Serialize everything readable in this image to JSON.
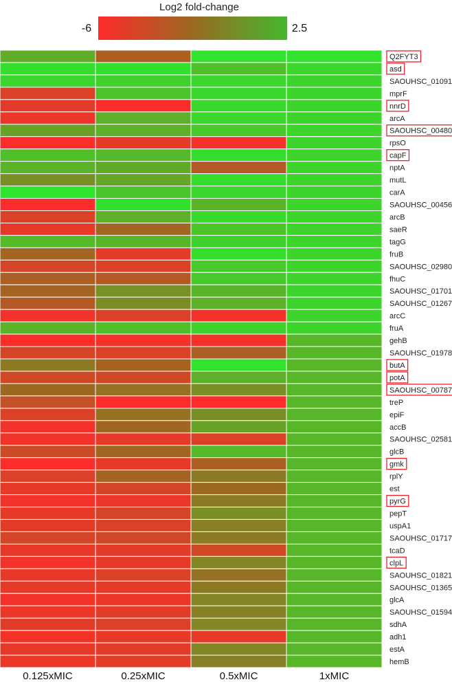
{
  "chart_data": {
    "type": "heatmap",
    "colorbar": {
      "title": "Log2 fold-change",
      "min_label": "-6",
      "max_label": "2.5",
      "vmin": -6,
      "vmax": 2.5,
      "low_color": "#ff2a2a",
      "high_color": "#2ee62e"
    },
    "columns": [
      "0.125xMIC",
      "0.25xMIC",
      "0.5xMIC",
      "1xMIC"
    ],
    "rows": [
      "Q2FYT3",
      "asd",
      "SAOUHSC_01091",
      "mprF",
      "nnrD",
      "arcA",
      "SAOUHSC_00480",
      "rpsO",
      "capF",
      "nptA",
      "mutL",
      "carA",
      "SAOUHSC_00456",
      "arcB",
      "saeR",
      "tagG",
      "fruB",
      "SAOUHSC_02980",
      "fhuC",
      "SAOUHSC_01701",
      "SAOUHSC_01267",
      "arcC",
      "fruA",
      "gehB",
      "SAOUHSC_01978",
      "butA",
      "potA",
      "SAOUHSC_00787",
      "treP",
      "epiF",
      "accB",
      "SAOUHSC_02581",
      "glcB",
      "gmk",
      "rplY",
      "est",
      "pyrG",
      "pepT",
      "uspA1",
      "SAOUHSC_01717",
      "tcaD",
      "clpL",
      "SAOUHSC_01821",
      "SAOUHSC_01365",
      "glcA",
      "SAOUHSC_01594",
      "sdhA",
      "adh1",
      "estA",
      "hemB"
    ],
    "highlighted_rows": [
      "Q2FYT3",
      "asd",
      "nnrD",
      "SAOUHSC_00480",
      "capF",
      "butA",
      "potA",
      "SAOUHSC_00787",
      "gmk",
      "pyrG",
      "clpL"
    ],
    "values": [
      [
        0.5,
        -2.5,
        2.4,
        2.4
      ],
      [
        2.3,
        2.3,
        1.2,
        2.0
      ],
      [
        2.0,
        1.8,
        2.0,
        1.9
      ],
      [
        -4.5,
        1.3,
        2.0,
        1.9
      ],
      [
        -4.8,
        -5.8,
        2.0,
        1.9
      ],
      [
        -5.3,
        0.6,
        2.0,
        1.9
      ],
      [
        0.2,
        0.6,
        1.5,
        1.9
      ],
      [
        -5.8,
        -4.8,
        -5.5,
        1.9
      ],
      [
        1.2,
        1.0,
        2.2,
        1.9
      ],
      [
        0.8,
        0.4,
        -2.8,
        1.9
      ],
      [
        -0.5,
        0.3,
        2.2,
        1.9
      ],
      [
        2.5,
        1.4,
        2.0,
        1.9
      ],
      [
        -5.8,
        2.3,
        0.8,
        1.9
      ],
      [
        -4.5,
        0.6,
        2.1,
        1.9
      ],
      [
        -5.0,
        -2.0,
        1.4,
        1.9
      ],
      [
        1.0,
        0.8,
        1.8,
        1.9
      ],
      [
        -2.0,
        -4.8,
        2.2,
        1.9
      ],
      [
        -4.2,
        -4.5,
        1.5,
        1.9
      ],
      [
        -2.5,
        -2.8,
        1.5,
        1.9
      ],
      [
        -2.2,
        -0.4,
        0.8,
        1.9
      ],
      [
        -2.8,
        -0.6,
        0.6,
        1.9
      ],
      [
        -5.5,
        -4.5,
        -5.5,
        1.9
      ],
      [
        0.8,
        1.2,
        1.8,
        1.9
      ],
      [
        -5.8,
        -5.5,
        -5.5,
        0.9
      ],
      [
        -4.2,
        -4.5,
        -2.5,
        0.9
      ],
      [
        -1.2,
        -2.2,
        2.4,
        0.9
      ],
      [
        -4.0,
        -4.0,
        0.6,
        0.9
      ],
      [
        -1.8,
        -1.5,
        -0.5,
        0.9
      ],
      [
        -3.5,
        -5.8,
        -6.0,
        0.9
      ],
      [
        -4.5,
        -1.5,
        -0.5,
        0.9
      ],
      [
        -5.5,
        -2.0,
        0.2,
        0.9
      ],
      [
        -5.5,
        -5.0,
        -4.5,
        0.9
      ],
      [
        -3.8,
        -2.0,
        1.0,
        0.9
      ],
      [
        -5.8,
        -5.0,
        -2.5,
        0.9
      ],
      [
        -4.5,
        -2.2,
        -1.2,
        0.9
      ],
      [
        -5.0,
        -4.2,
        -1.8,
        0.9
      ],
      [
        -5.5,
        -5.3,
        -1.2,
        0.9
      ],
      [
        -5.0,
        -4.2,
        -0.5,
        0.9
      ],
      [
        -4.8,
        -4.5,
        -1.0,
        0.9
      ],
      [
        -4.2,
        -4.0,
        -1.2,
        0.9
      ],
      [
        -5.0,
        -4.8,
        -4.0,
        0.9
      ],
      [
        -5.5,
        -5.0,
        -0.8,
        0.9
      ],
      [
        -5.0,
        -4.5,
        -1.5,
        0.9
      ],
      [
        -5.0,
        -5.0,
        -1.2,
        0.9
      ],
      [
        -5.5,
        -5.2,
        -0.8,
        0.9
      ],
      [
        -5.2,
        -4.8,
        -1.0,
        0.9
      ],
      [
        -4.8,
        -4.5,
        -0.8,
        0.9
      ],
      [
        -5.5,
        -5.0,
        -5.0,
        0.9
      ],
      [
        -5.0,
        -4.8,
        -0.8,
        0.9
      ],
      [
        -5.2,
        -4.8,
        -1.0,
        0.9
      ]
    ]
  }
}
